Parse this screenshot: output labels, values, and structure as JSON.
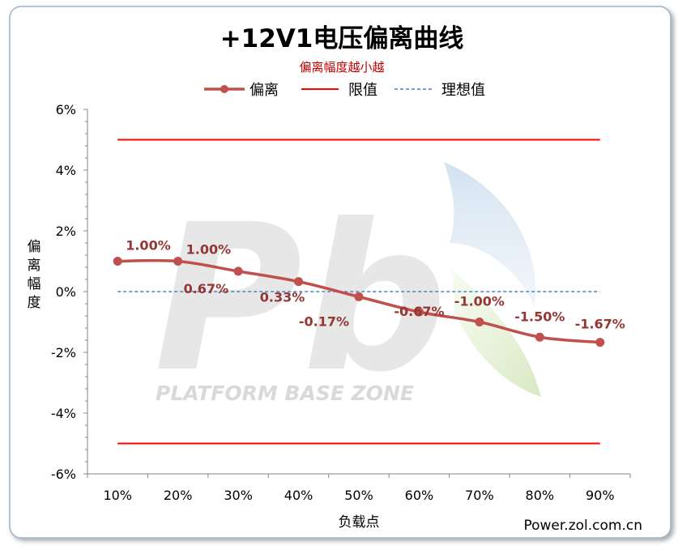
{
  "chart_data": {
    "type": "line",
    "title": "+12V1电压偏离曲线",
    "subtitle": "偏离幅度越小越",
    "xlabel": "负载点",
    "ylabel": "偏离幅度",
    "categories": [
      "10%",
      "20%",
      "30%",
      "40%",
      "50%",
      "60%",
      "70%",
      "80%",
      "90%"
    ],
    "series": [
      {
        "name": "偏离",
        "values": [
          1.0,
          1.0,
          0.67,
          0.33,
          -0.17,
          -0.67,
          -1.0,
          -1.5,
          -1.67
        ],
        "labels": [
          "1.00%",
          "1.00%",
          "0.67%",
          "0.33%",
          "-0.17%",
          "-0.67%",
          "-1.00%",
          "-1.50%",
          "-1.67%"
        ],
        "color": "#c0504d"
      },
      {
        "name": "限值",
        "values_upper": 5,
        "values_lower": -5,
        "color": "#ff0000"
      },
      {
        "name": "理想值",
        "value": 0,
        "color": "#4f81bd"
      }
    ],
    "legend": [
      "偏离",
      "限值",
      "理想值"
    ],
    "legend_position": "top",
    "ylim": [
      -6,
      6
    ],
    "yticks": [
      -6,
      -4,
      -2,
      0,
      2,
      4,
      6
    ],
    "ytick_labels": [
      "-6%",
      "-4%",
      "-2%",
      "0%",
      "2%",
      "4%",
      "6%"
    ],
    "grid": false
  },
  "watermark": "PLATFORM BASE ZONE",
  "watermark_logo": "Pb",
  "source": "Power.zol.com.cn",
  "colors": {
    "frame_border": "#9fb2c7",
    "title": "#000000",
    "subtitle": "#c00000",
    "data_label": "#943634",
    "axis": "#868686"
  }
}
